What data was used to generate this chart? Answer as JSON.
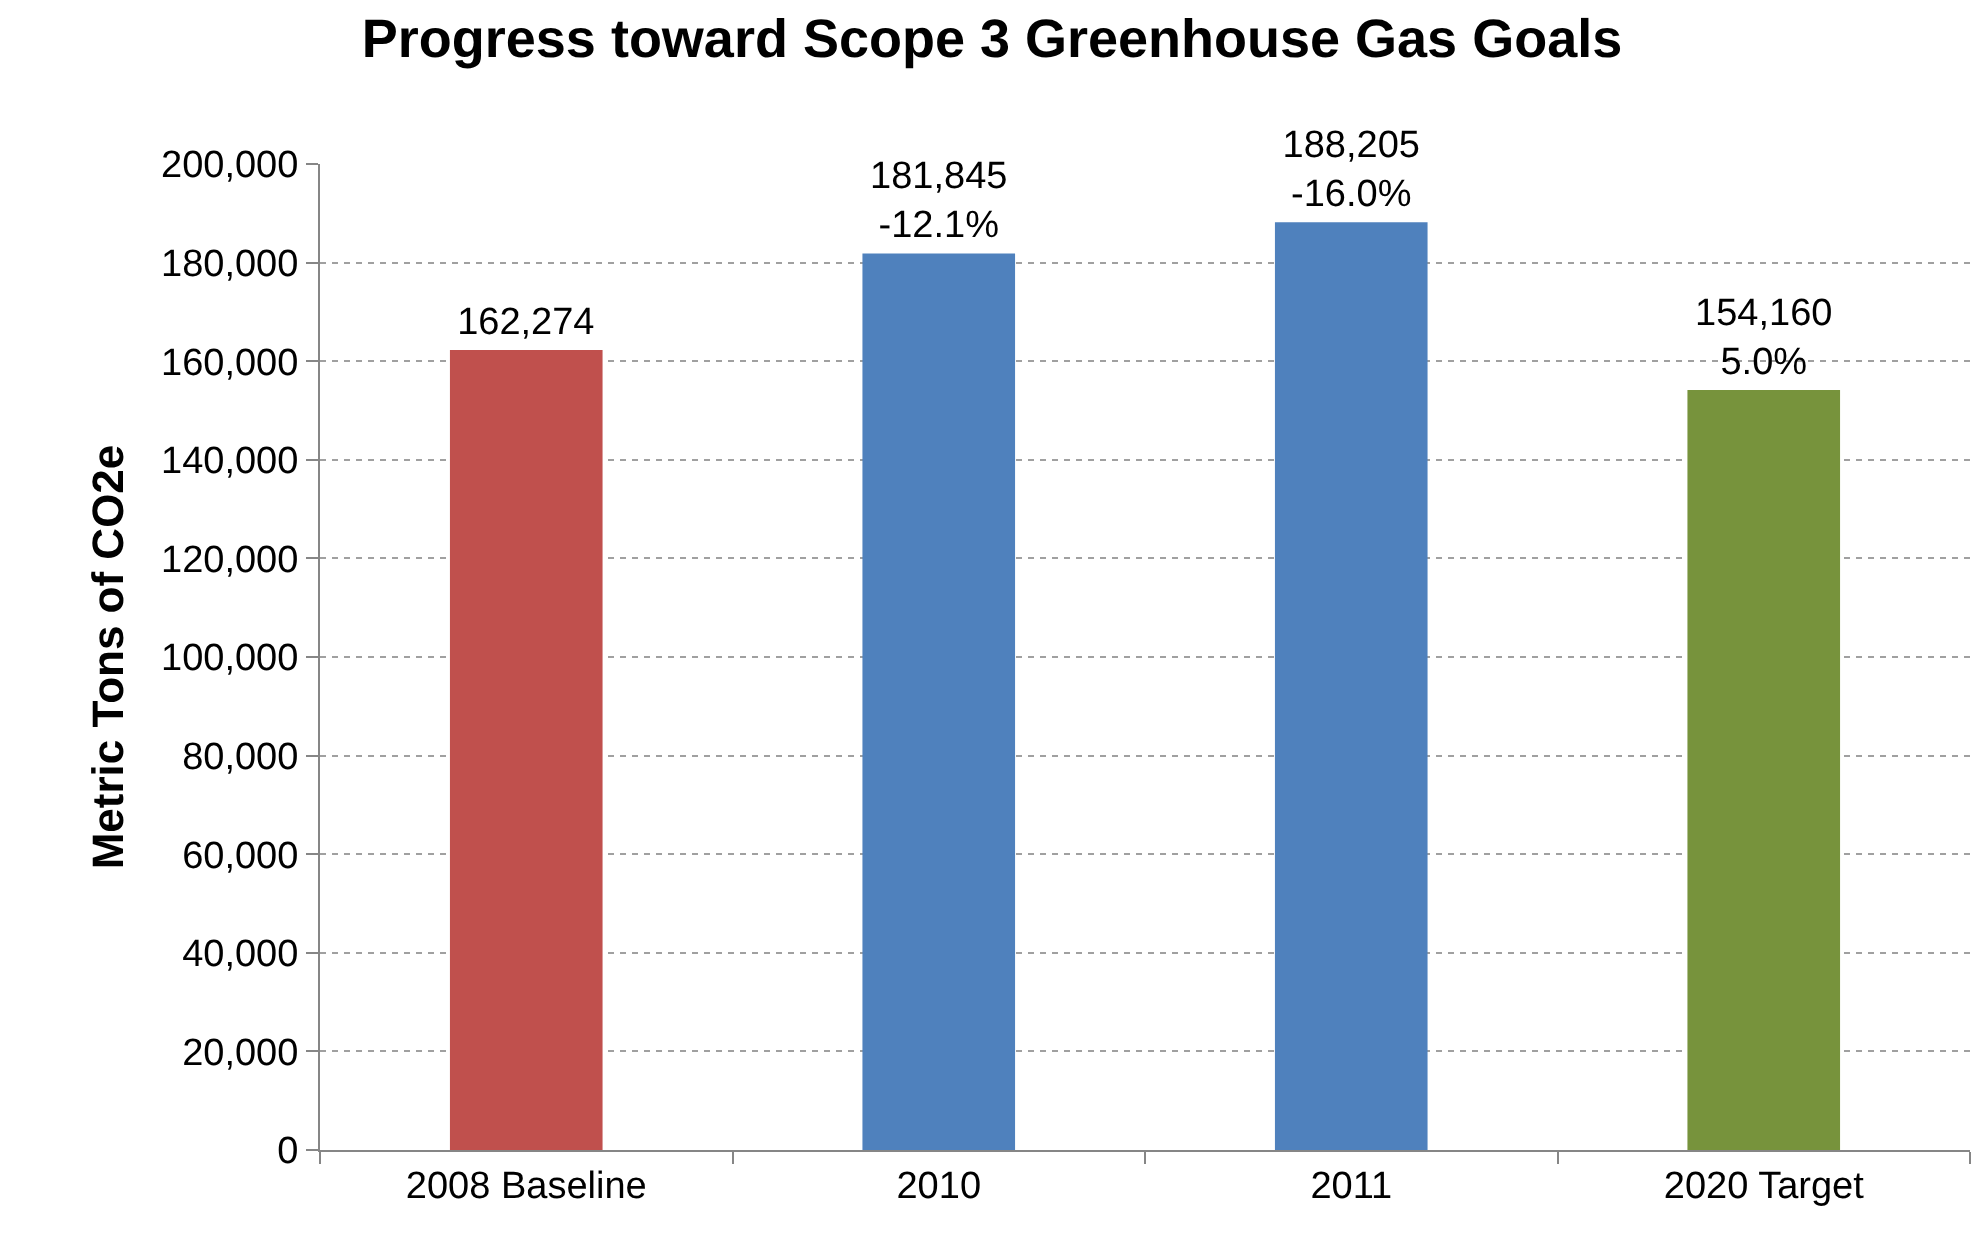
{
  "chart_data": {
    "type": "bar",
    "title": "Progress toward Scope 3 Greenhouse Gas Goals",
    "ylabel": "Metric Tons of CO2e",
    "categories": [
      "2008 Baseline",
      "2010",
      "2011",
      "2020 Target"
    ],
    "values": [
      162274,
      181845,
      188205,
      154160
    ],
    "colors": [
      "#c0504d",
      "#4f81bd",
      "#4f81bd",
      "#77933c"
    ],
    "value_labels": [
      "162,274",
      "181,845\n-12.1%",
      "188,205\n-16.0%",
      "154,160\n5.0%"
    ],
    "ylim": [
      0,
      200000
    ],
    "yticks": [
      {
        "value": 0,
        "label": "0"
      },
      {
        "value": 20000,
        "label": "20,000"
      },
      {
        "value": 40000,
        "label": "40,000"
      },
      {
        "value": 60000,
        "label": "60,000"
      },
      {
        "value": 80000,
        "label": "80,000"
      },
      {
        "value": 100000,
        "label": "100,000"
      },
      {
        "value": 120000,
        "label": "120,000"
      },
      {
        "value": 140000,
        "label": "140,000"
      },
      {
        "value": 160000,
        "label": "160,000"
      },
      {
        "value": 180000,
        "label": "180,000"
      },
      {
        "value": 200000,
        "label": "200,000"
      }
    ],
    "grid": "y"
  }
}
